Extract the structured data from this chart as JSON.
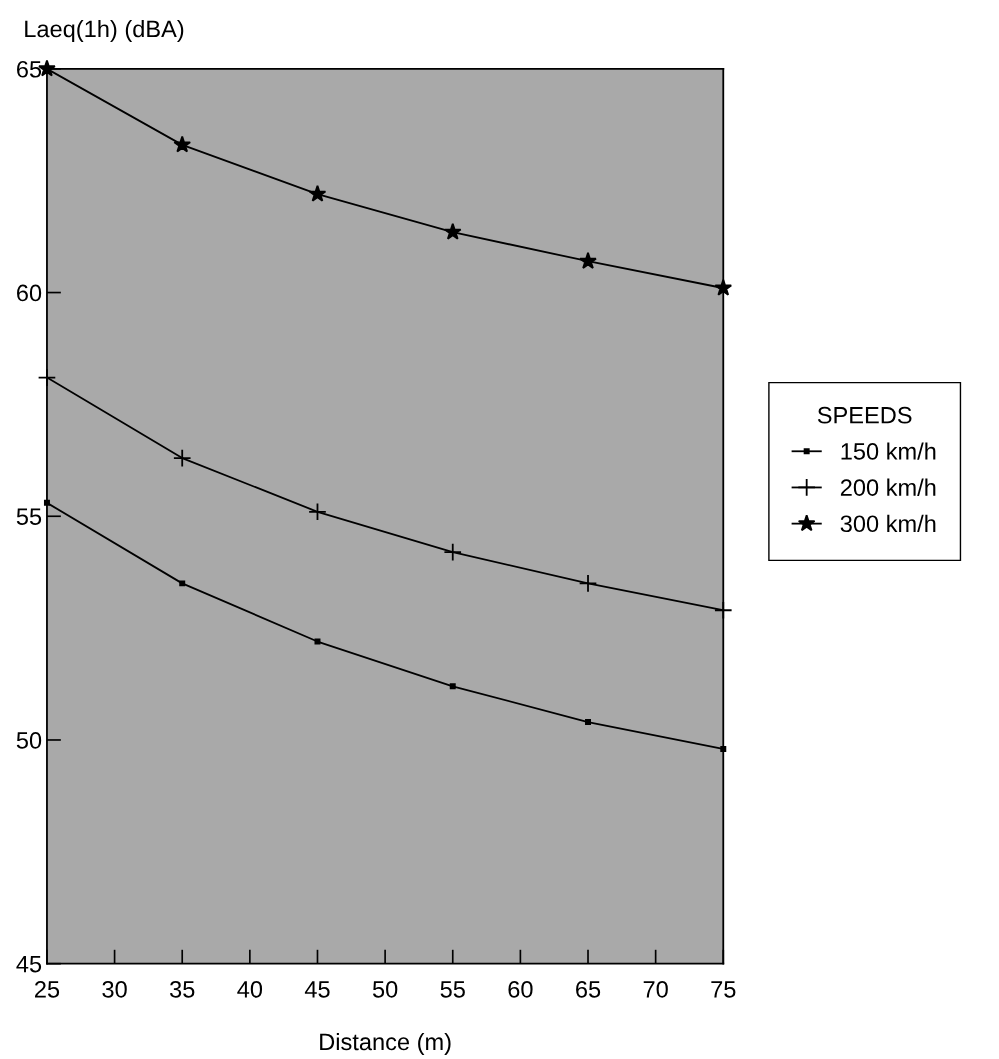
{
  "chart_data": {
    "type": "line",
    "ylabel": "Laeq(1h) (dBA)",
    "xlabel": "Distance (m)",
    "legend_title": "SPEEDS",
    "x": [
      25,
      35,
      45,
      55,
      65,
      75
    ],
    "series": [
      {
        "name": "150 km/h",
        "color": "#000000",
        "marker": "square",
        "values": [
          55.3,
          53.5,
          52.2,
          51.2,
          50.4,
          49.8
        ]
      },
      {
        "name": "200 km/h",
        "color": "#000000",
        "marker": "cross",
        "values": [
          58.1,
          56.3,
          55.1,
          54.2,
          53.5,
          52.9
        ]
      },
      {
        "name": "300 km/h",
        "color": "#000000",
        "marker": "star",
        "values": [
          65.0,
          63.3,
          62.2,
          61.35,
          60.7,
          60.1
        ]
      }
    ],
    "xlim": [
      25,
      75
    ],
    "xticks": [
      25,
      30,
      35,
      40,
      45,
      50,
      55,
      60,
      65,
      70,
      75
    ],
    "ylim": [
      45,
      65
    ],
    "yticks": [
      45,
      50,
      55,
      60,
      65
    ],
    "grid": false,
    "legend": "right",
    "line_style": "solid"
  }
}
